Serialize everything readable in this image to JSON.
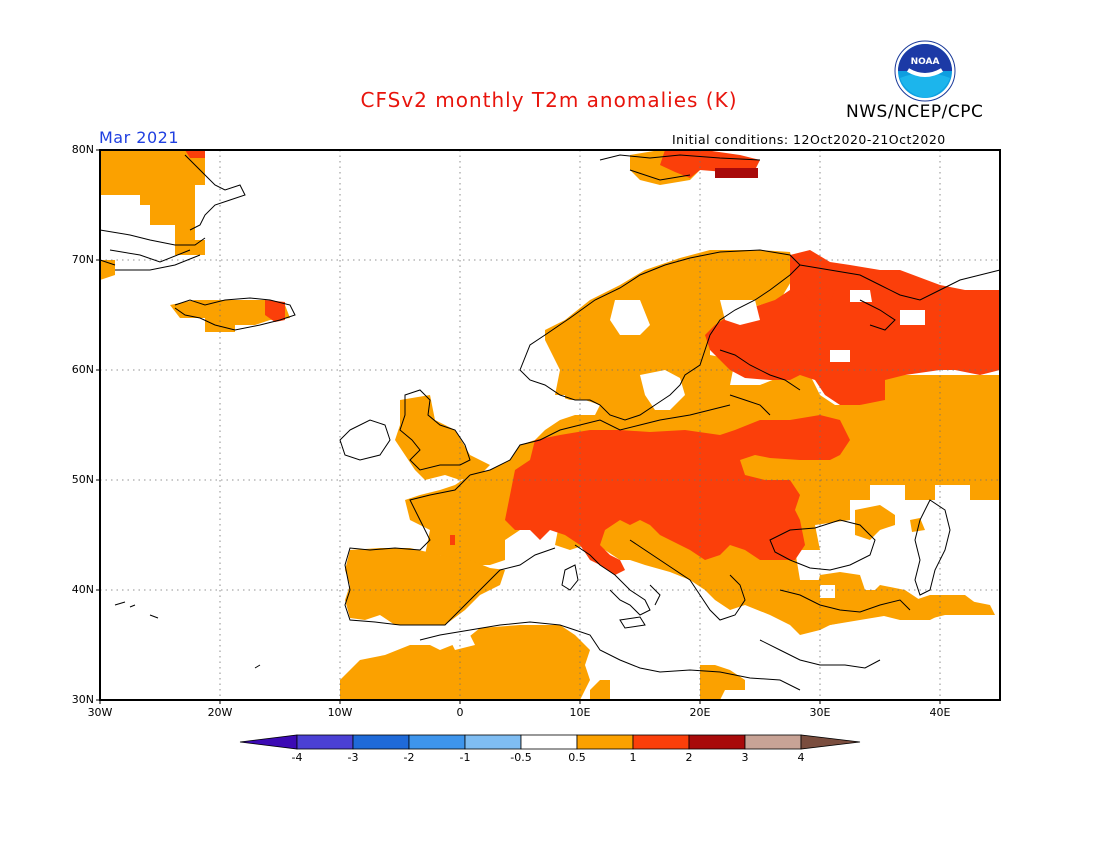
{
  "title": "CFSv2 monthly T2m anomalies (K)",
  "organization": "NWS/NCEP/CPC",
  "logo_text": "NOAA",
  "valid_month": "Mar 2021",
  "initial_conditions": "Initial conditions: 12Oct2020-21Oct2020",
  "lat_labels": [
    "80N",
    "70N",
    "60N",
    "50N",
    "40N",
    "30N"
  ],
  "lon_labels": [
    "30W",
    "20W",
    "10W",
    "0",
    "10E",
    "20E",
    "30E",
    "40E"
  ],
  "colorbar": {
    "labels": [
      "-4",
      "-3",
      "-2",
      "-1",
      "-0.5",
      "0.5",
      "1",
      "2",
      "3",
      "4"
    ],
    "colors": [
      "#3c0ab4",
      "#4b40d4",
      "#1f6ad8",
      "#3e95ec",
      "#7fbdf2",
      "#ffffff",
      "#fba100",
      "#fb3f0a",
      "#a80a0a",
      "#c8a396",
      "#7a4d3e"
    ]
  },
  "colors": {
    "title": "#e8140c",
    "month": "#1f3fe0",
    "anom_0_5_to_1": "#fba100",
    "anom_1_to_2": "#fb3f0a",
    "anom_2_to_3": "#a80a0a"
  }
}
